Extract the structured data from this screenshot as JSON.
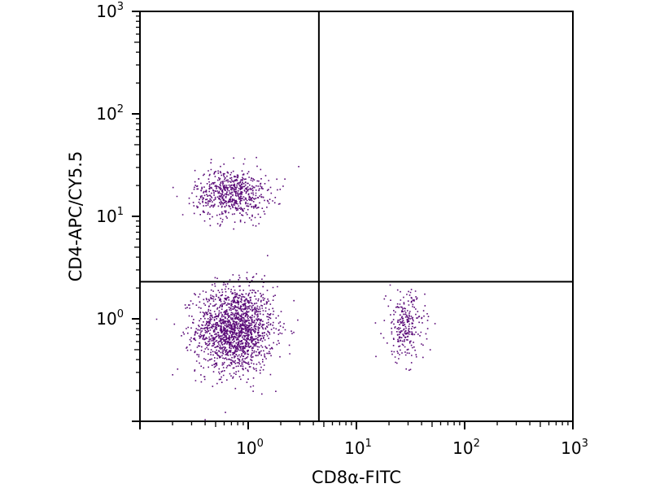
{
  "chart_data": {
    "type": "scatter",
    "title": "",
    "xlabel": "CD8α-FITC",
    "ylabel": "CD4-APC/CY5.5",
    "xscale": "log",
    "yscale": "log",
    "xlim": [
      0.1,
      1000
    ],
    "ylim": [
      0.1,
      1000
    ],
    "grid": false,
    "legend": "none",
    "point_color": "#5a0a78",
    "gate": {
      "x": 4.5,
      "y": 2.3
    },
    "x_ticks": [
      {
        "base": "10",
        "exp": "0"
      },
      {
        "base": "10",
        "exp": "1"
      },
      {
        "base": "10",
        "exp": "2"
      },
      {
        "base": "10",
        "exp": "3"
      }
    ],
    "y_ticks": [
      {
        "base": "10",
        "exp": "0"
      },
      {
        "base": "10",
        "exp": "1"
      },
      {
        "base": "10",
        "exp": "2"
      },
      {
        "base": "10",
        "exp": "3"
      }
    ],
    "populations": [
      {
        "quadrant": "lower-left",
        "x_center": 0.75,
        "y_center": 0.8,
        "x_spread_log": 0.18,
        "y_spread_log": 0.21,
        "count": 1700
      },
      {
        "quadrant": "upper-left",
        "x_center": 0.7,
        "y_center": 17,
        "x_spread_log": 0.17,
        "y_spread_log": 0.12,
        "count": 650
      },
      {
        "quadrant": "lower-right",
        "x_center": 28,
        "y_center": 0.85,
        "x_spread_log": 0.09,
        "y_spread_log": 0.17,
        "count": 260
      }
    ]
  }
}
